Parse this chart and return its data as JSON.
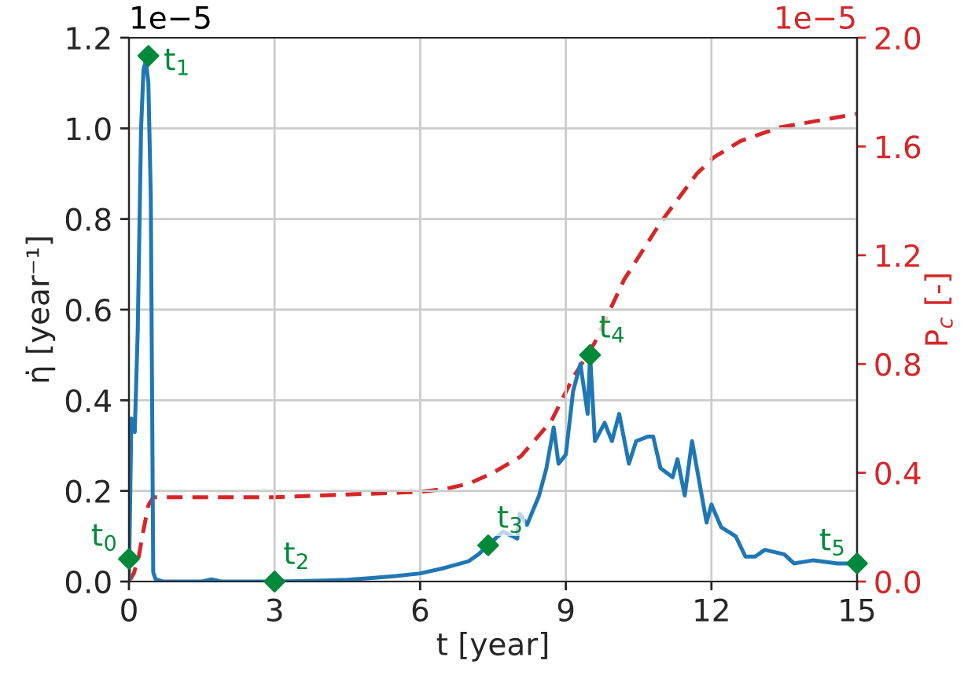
{
  "chart_data": {
    "type": "line",
    "xlabel": "t [year]",
    "ylabel": "η̇ [year⁻¹]",
    "y2label": "P$_{c}$ [-]",
    "xlim": [
      0,
      15
    ],
    "xticks": [
      0,
      3,
      6,
      9,
      12,
      15
    ],
    "ylim": [
      0,
      1.2
    ],
    "yticks": [
      {
        "value": 0,
        "label": "0.0"
      },
      0.2,
      0.4,
      0.6,
      0.8,
      {
        "value": 1,
        "label": "1.0"
      },
      1.2
    ],
    "y2lim": [
      0,
      2
    ],
    "y2ticks": [
      {
        "value": 0,
        "label": "0.0"
      },
      0.4,
      0.8,
      1.2,
      1.6,
      {
        "value": 2,
        "label": "2.0"
      }
    ],
    "grid": true,
    "series": [
      {
        "color": "#1f77b4",
        "line_style": "solid",
        "x": [
          0,
          0.05,
          0.12,
          0.18,
          0.25,
          0.3,
          0.35,
          0.4,
          0.45,
          0.5,
          0.55,
          0.7,
          1.0,
          1.5,
          1.7,
          1.9,
          2.5,
          3.0,
          3.5,
          4.0,
          4.5,
          5.0,
          5.5,
          6.0,
          6.5,
          7.0,
          7.2,
          7.4,
          7.7,
          8.0,
          8.05,
          8.2,
          8.45,
          8.6,
          8.75,
          8.85,
          9.0,
          9.15,
          9.3,
          9.45,
          9.5,
          9.6,
          9.8,
          9.95,
          10.1,
          10.3,
          10.45,
          10.7,
          10.8,
          10.95,
          11.2,
          11.3,
          11.45,
          11.6,
          11.9,
          12.0,
          12.2,
          12.5,
          12.7,
          12.9,
          13.1,
          13.5,
          13.7,
          14.1,
          14.6,
          15.0
        ],
        "values": [
          0.0,
          0.36,
          0.33,
          0.55,
          1.0,
          1.13,
          1.15,
          1.1,
          0.85,
          0.02,
          0.005,
          0.0,
          0.0,
          0.0,
          0.005,
          0.0,
          0.0,
          0.0,
          0.001,
          0.002,
          0.004,
          0.008,
          0.012,
          0.018,
          0.03,
          0.045,
          0.06,
          0.08,
          0.11,
          0.095,
          0.15,
          0.125,
          0.19,
          0.25,
          0.34,
          0.26,
          0.28,
          0.42,
          0.48,
          0.37,
          0.5,
          0.31,
          0.35,
          0.31,
          0.37,
          0.26,
          0.31,
          0.32,
          0.32,
          0.25,
          0.23,
          0.27,
          0.19,
          0.31,
          0.13,
          0.17,
          0.12,
          0.1,
          0.055,
          0.055,
          0.07,
          0.06,
          0.04,
          0.047,
          0.04,
          0.04
        ]
      },
      {
        "type": "line",
        "axis": "y2",
        "color": "#d62728",
        "line_style": "dashed",
        "x": [
          0,
          0.1,
          0.2,
          0.3,
          0.4,
          0.5,
          0.7,
          1.5,
          3.0,
          4.5,
          6.0,
          6.5,
          7.0,
          7.5,
          8.07,
          8.7,
          9.15,
          9.6,
          10.2,
          10.95,
          11.7,
          12.05,
          12.6,
          13.4,
          15.0
        ],
        "values": [
          0.0,
          0.03,
          0.09,
          0.19,
          0.28,
          0.31,
          0.31,
          0.31,
          0.31,
          0.32,
          0.33,
          0.34,
          0.36,
          0.4,
          0.46,
          0.59,
          0.75,
          0.88,
          1.11,
          1.32,
          1.5,
          1.56,
          1.62,
          1.67,
          1.72
        ]
      },
      {
        "type": "scatter",
        "color": "#00893a",
        "marker": "diamond",
        "x": [
          0,
          0.4,
          3.0,
          7.4,
          9.5,
          15.0
        ],
        "values": [
          0.05,
          1.16,
          0.0,
          0.08,
          0.5,
          0.04
        ]
      }
    ],
    "annotations": [
      "1e−5",
      "1e−5",
      {
        "text": "t$_{0}$",
        "x": 0,
        "y": 0.05
      },
      {
        "text": "t$_{1}$",
        "x": 0.4,
        "y": 1.16
      },
      {
        "text": "t$_{2}$",
        "x": 3.0,
        "y": 0.0
      },
      {
        "text": "t$_{3}$",
        "x": 7.4,
        "y": 0.08
      },
      {
        "text": "t$_{4}$",
        "x": 9.5,
        "y": 0.5
      },
      {
        "text": "t$_{5}$",
        "x": 15.0,
        "y": 0.04
      }
    ]
  }
}
